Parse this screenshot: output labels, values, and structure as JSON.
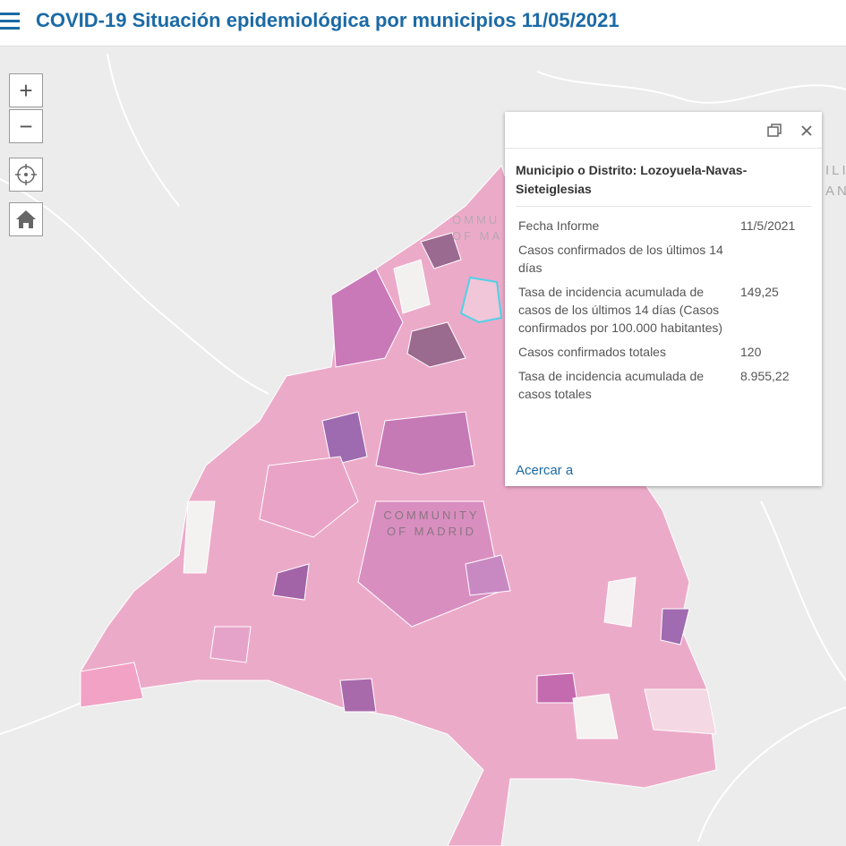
{
  "header": {
    "title": "COVID-19 Situación epidemiológica por municipios 11/05/2021"
  },
  "controls": {
    "zoom_in": "+",
    "zoom_out": "−"
  },
  "map": {
    "labels": [
      "COMMUNITY",
      "OF MADRID"
    ],
    "top_labels": [
      "OMMU",
      "OF MA"
    ],
    "edge_labels": [
      "ILI",
      "AN"
    ]
  },
  "popup": {
    "title": "Municipio o Distrito: Lozoyuela-Navas-Sieteiglesias",
    "rows": [
      {
        "label": "Fecha Informe",
        "value": "11/5/2021"
      },
      {
        "label": "Casos confirmados de los últimos 14 días"
      },
      {
        "label": "Tasa de incidencia acumulada de casos de los últimos 14 días (Casos confirmados por 100.000 habitantes)",
        "value": "149,25"
      },
      {
        "label": "Casos confirmados totales",
        "value": "120"
      },
      {
        "label": "Tasa de incidencia acumulada de casos totales",
        "value": "8.955,22"
      }
    ],
    "link": "Acercar a"
  }
}
